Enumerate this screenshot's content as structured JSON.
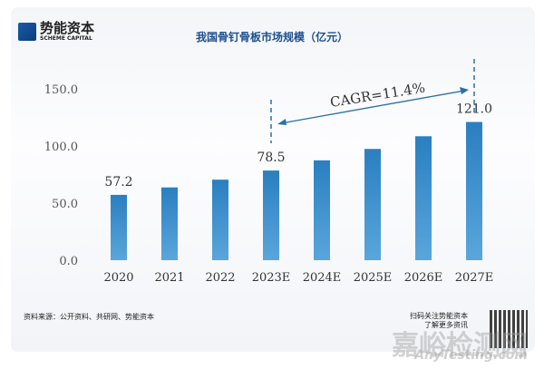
{
  "brand": {
    "name_cn": "势能资本",
    "name_en": "SCHEME CAPITAL"
  },
  "chart_data": {
    "type": "bar",
    "title": "我国骨钉骨板市场规模（亿元）",
    "categories": [
      "2020",
      "2021",
      "2022",
      "2023E",
      "2024E",
      "2025E",
      "2026E",
      "2027E"
    ],
    "values": [
      57.2,
      63.7,
      70.5,
      78.5,
      87.4,
      97.4,
      108.5,
      121.0
    ],
    "data_labels": {
      "0": "57.2",
      "3": "78.5",
      "7": "121.0"
    },
    "yticks": [
      "0.0",
      "50.0",
      "100.0",
      "150.0"
    ],
    "ylim": [
      0,
      150
    ],
    "grid": false,
    "bar_color": "#2a7fc0",
    "annotation": "CAGR=11.4%",
    "xlabel": "",
    "ylabel": ""
  },
  "footer": {
    "source": "资料来源：公开资料、共研网、势能资本",
    "qr_line1": "扫码关注势能资本",
    "qr_line2": "了解更多资讯"
  },
  "watermark": {
    "cn": "嘉峪检测网",
    "en": "AnyTesting.com"
  }
}
